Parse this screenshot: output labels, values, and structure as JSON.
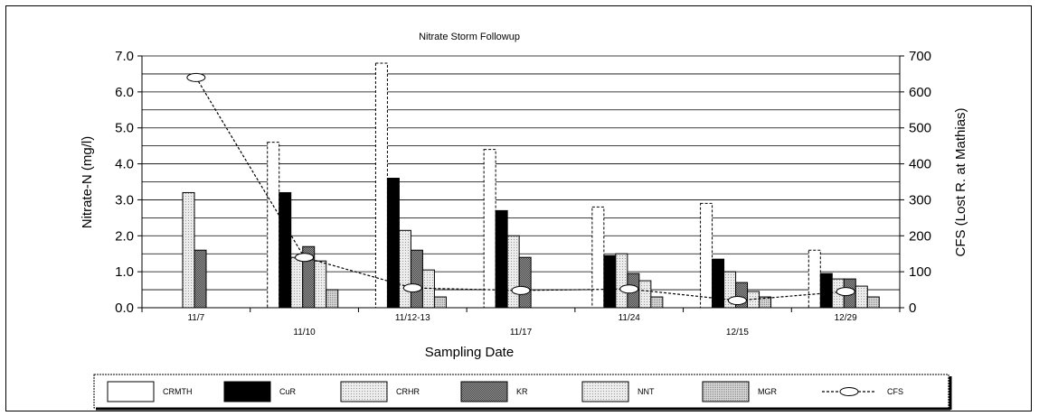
{
  "chart_data": {
    "type": "bar",
    "title": "Nitrate Storm Followup",
    "xlabel": "Sampling Date",
    "ylabel": "Nitrate-N (mg/l)",
    "y2label": "CFS (Lost R. at Mathias)",
    "categories": [
      "11/7",
      "11/10",
      "11/12-13",
      "11/17",
      "11/24",
      "12/15",
      "12/29"
    ],
    "ylim": [
      0,
      7
    ],
    "y_ticks": [
      "0.0",
      "1.0",
      "2.0",
      "3.0",
      "4.0",
      "5.0",
      "6.0",
      "7.0"
    ],
    "y2lim": [
      0,
      700
    ],
    "y2_ticks": [
      "0",
      "100",
      "200",
      "300",
      "400",
      "500",
      "600",
      "700"
    ],
    "grid": true,
    "legend_position": "bottom",
    "series": [
      {
        "name": "CRMTH",
        "type": "bar",
        "color": "#ffffff",
        "values": [
          null,
          4.6,
          6.8,
          4.4,
          2.8,
          2.9,
          1.6
        ]
      },
      {
        "name": "CuR",
        "type": "bar",
        "color": "#000000",
        "values": [
          null,
          3.2,
          3.6,
          2.7,
          1.45,
          1.35,
          0.95
        ]
      },
      {
        "name": "CRHR",
        "type": "bar",
        "color": "#d9d9d9",
        "values": [
          3.2,
          1.4,
          2.15,
          2.0,
          1.5,
          1.0,
          0.8
        ]
      },
      {
        "name": "KR",
        "type": "bar",
        "color": "#808080",
        "values": [
          1.6,
          1.7,
          1.6,
          1.4,
          0.95,
          0.7,
          0.8
        ]
      },
      {
        "name": "NNT",
        "type": "bar",
        "color": "#e0e0e0",
        "values": [
          null,
          1.3,
          1.05,
          null,
          0.75,
          0.45,
          0.6
        ]
      },
      {
        "name": "MGR",
        "type": "bar",
        "color": "#e0e0e0",
        "values": [
          null,
          0.5,
          0.3,
          null,
          0.3,
          0.3,
          0.3
        ]
      },
      {
        "name": "CFS",
        "type": "line",
        "axis": "right",
        "values": [
          640,
          140,
          55,
          48,
          52,
          20,
          45
        ]
      }
    ]
  }
}
